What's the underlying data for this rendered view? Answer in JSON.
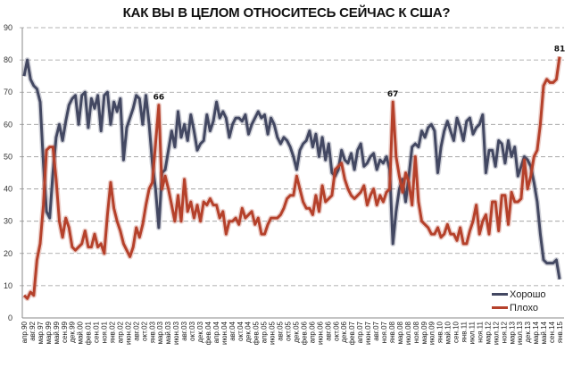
{
  "title": "КАК ВЫ В ЦЕЛОМ ОТНОСИТЕСЬ СЕЙЧАС К США?",
  "legend": {
    "items": [
      {
        "label": "Хорошо",
        "color": "#434862"
      },
      {
        "label": "Плохо",
        "color": "#b5412b"
      }
    ]
  },
  "chart_data": {
    "type": "line",
    "title": "КАК ВЫ В ЦЕЛОМ ОТНОСИТЕСЬ СЕЙЧАС К США?",
    "xlabel": "",
    "ylabel": "",
    "ylim": [
      0,
      90
    ],
    "yticks": [
      0,
      10,
      20,
      30,
      40,
      50,
      60,
      70,
      80,
      90
    ],
    "grid": true,
    "legend_position": "bottom-right",
    "x_tick_labels": [
      "апр.90",
      "авг.92",
      "мар.97",
      "мар.99",
      "май.99",
      "сен.99",
      "дек.99",
      "май.00",
      "фев.01",
      "сен.01",
      "ноя.01",
      "янв.02",
      "апр.02",
      "июн.02",
      "авг.02",
      "окт.02",
      "янв.03",
      "мар.03",
      "май.03",
      "июн.03",
      "авг.03",
      "окт.03",
      "дек.03",
      "фев.04",
      "апр.04",
      "июн.04",
      "авг.04",
      "окт.04",
      "дек.04",
      "фев.05",
      "апр.05",
      "июн.05",
      "авг.05",
      "окт.05",
      "дек.05",
      "фев.06",
      "апр.06",
      "июн.06",
      "авг.06",
      "окт.06",
      "дек.06",
      "фев.07",
      "апр.07",
      "июн.07",
      "авг.07",
      "ноя.07",
      "янв.08",
      "мар.08",
      "июл.08",
      "ноя.08",
      "мар.09",
      "июл.09",
      "янв.10",
      "май.10",
      "сен.10",
      "янв.11",
      "июл.11",
      "ноя.11",
      "мар.12",
      "июл.12",
      "ноя.12",
      "мар.13",
      "июл.13",
      "дек.13",
      "мар.14",
      "май.14",
      "сен.14",
      "янв.15"
    ],
    "annotations": [
      {
        "label": "66",
        "series": "Плохо",
        "x_label": "мар.03",
        "value": 66
      },
      {
        "label": "67",
        "series": "Плохо",
        "x_label": "авг.08",
        "value": 67
      },
      {
        "label": "81",
        "series": "Плохо",
        "x_label": "янв.15",
        "value": 81
      }
    ],
    "series": [
      {
        "name": "Хорошо",
        "color": "#434862",
        "values": [
          75,
          80,
          74,
          72,
          71,
          67,
          48,
          33,
          31,
          45,
          56,
          60,
          55,
          61,
          66,
          68,
          69,
          60,
          69,
          70,
          59,
          68,
          65,
          69,
          58,
          69,
          70,
          60,
          67,
          64,
          68,
          49,
          59,
          62,
          65,
          69,
          68,
          60,
          69,
          60,
          48,
          40,
          28,
          45,
          46,
          52,
          58,
          53,
          64,
          56,
          60,
          55,
          63,
          58,
          52,
          54,
          55,
          63,
          58,
          61,
          67,
          62,
          64,
          62,
          56,
          60,
          62,
          62,
          61,
          63,
          57,
          60,
          62,
          64,
          62,
          63,
          57,
          62,
          60,
          56,
          54,
          56,
          55,
          53,
          50,
          46,
          52,
          54,
          55,
          58,
          53,
          57,
          50,
          56,
          49,
          54,
          45,
          44,
          46,
          52,
          49,
          48,
          51,
          46,
          52,
          54,
          47,
          48,
          50,
          51,
          46,
          49,
          48,
          50,
          46,
          23,
          33,
          40,
          43,
          36,
          44,
          53,
          54,
          53,
          58,
          56,
          59,
          60,
          58,
          45,
          53,
          58,
          61,
          58,
          55,
          62,
          59,
          55,
          61,
          62,
          57,
          59,
          60,
          63,
          45,
          52,
          52,
          47,
          55,
          54,
          48,
          55,
          50,
          53,
          44,
          47,
          50,
          49,
          47,
          42,
          36,
          26,
          18,
          17,
          17,
          17,
          18,
          12
        ]
      },
      {
        "name": "Плохо",
        "color": "#b5412b",
        "values": [
          7,
          6,
          8,
          7,
          18,
          23,
          35,
          52,
          53,
          53,
          43,
          30,
          25,
          31,
          28,
          22,
          21,
          22,
          23,
          27,
          22,
          22,
          26,
          22,
          23,
          20,
          32,
          42,
          34,
          30,
          27,
          23,
          21,
          19,
          22,
          28,
          25,
          29,
          35,
          40,
          42,
          54,
          66,
          40,
          44,
          40,
          35,
          30,
          38,
          30,
          43,
          33,
          36,
          31,
          35,
          30,
          36,
          35,
          37,
          35,
          35,
          31,
          33,
          26,
          30,
          30,
          31,
          29,
          34,
          31,
          32,
          33,
          29,
          31,
          26,
          26,
          29,
          31,
          31,
          31,
          32,
          34,
          37,
          38,
          38,
          44,
          40,
          36,
          34,
          34,
          32,
          38,
          33,
          41,
          36,
          37,
          38,
          46,
          47,
          48,
          43,
          40,
          38,
          37,
          38,
          39,
          41,
          35,
          38,
          40,
          35,
          38,
          36,
          39,
          40,
          67,
          50,
          44,
          39,
          45,
          42,
          35,
          50,
          36,
          30,
          29,
          28,
          26,
          26,
          28,
          25,
          26,
          29,
          26,
          26,
          24,
          28,
          23,
          23,
          27,
          30,
          35,
          26,
          30,
          32,
          26,
          36,
          36,
          27,
          38,
          38,
          29,
          39,
          36,
          36,
          37,
          49,
          40,
          44,
          50,
          52,
          60,
          72,
          74,
          73,
          73,
          74,
          81
        ]
      }
    ]
  }
}
